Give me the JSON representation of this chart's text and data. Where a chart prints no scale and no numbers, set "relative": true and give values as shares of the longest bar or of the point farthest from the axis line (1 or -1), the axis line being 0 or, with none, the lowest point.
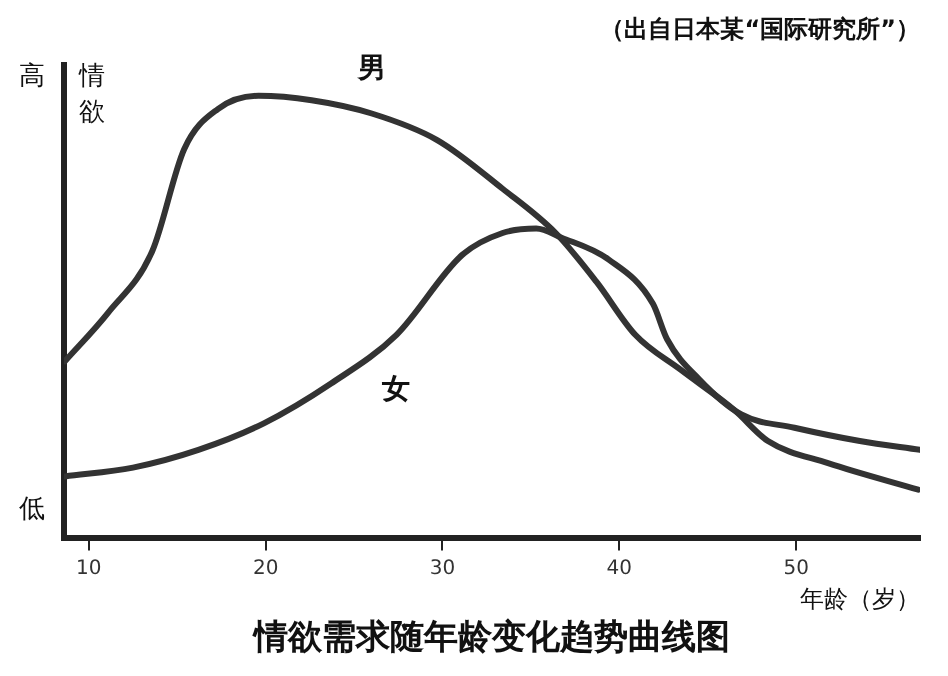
{
  "chart_data": {
    "type": "line",
    "relative": true,
    "title": "情欲需求随年龄变化趋势曲线图",
    "subtitle": "（出自日本某“国际研究所”）",
    "xlabel": "年龄（岁）",
    "ylabel": "情欲",
    "annotations": [
      "高",
      "低"
    ],
    "xlim": [
      8.6,
      57
    ],
    "xticks": [
      10,
      20,
      30,
      40,
      50
    ],
    "grid": false,
    "legend": false,
    "marker": "none",
    "line_style": "solid",
    "series": [
      {
        "name": "男",
        "color": "#333333",
        "x": [
          8.65,
          11.1,
          13.6,
          15.4,
          17.3,
          19.6,
          22.6,
          26.0,
          29.7,
          33.4,
          36.4,
          38.7,
          40.9,
          43.5,
          46.5,
          48.4,
          51.8,
          56.9
        ],
        "values": [
          0.4,
          0.51,
          0.65,
          0.88,
          0.97,
          1.0,
          0.99,
          0.96,
          0.9,
          0.79,
          0.69,
          0.58,
          0.46,
          0.38,
          0.29,
          0.22,
          0.17,
          0.11
        ]
      },
      {
        "name": "女",
        "color": "#333333",
        "x": [
          8.65,
          12.5,
          16.2,
          19.9,
          23.7,
          27.4,
          31.1,
          33.4,
          35.3,
          36.7,
          39.4,
          41.9,
          42.7,
          44.5,
          46.9,
          49.9,
          53.6,
          57.0
        ],
        "values": [
          0.14,
          0.16,
          0.2,
          0.26,
          0.35,
          0.46,
          0.64,
          0.69,
          0.7,
          0.68,
          0.63,
          0.53,
          0.45,
          0.36,
          0.28,
          0.25,
          0.22,
          0.2
        ]
      }
    ]
  }
}
